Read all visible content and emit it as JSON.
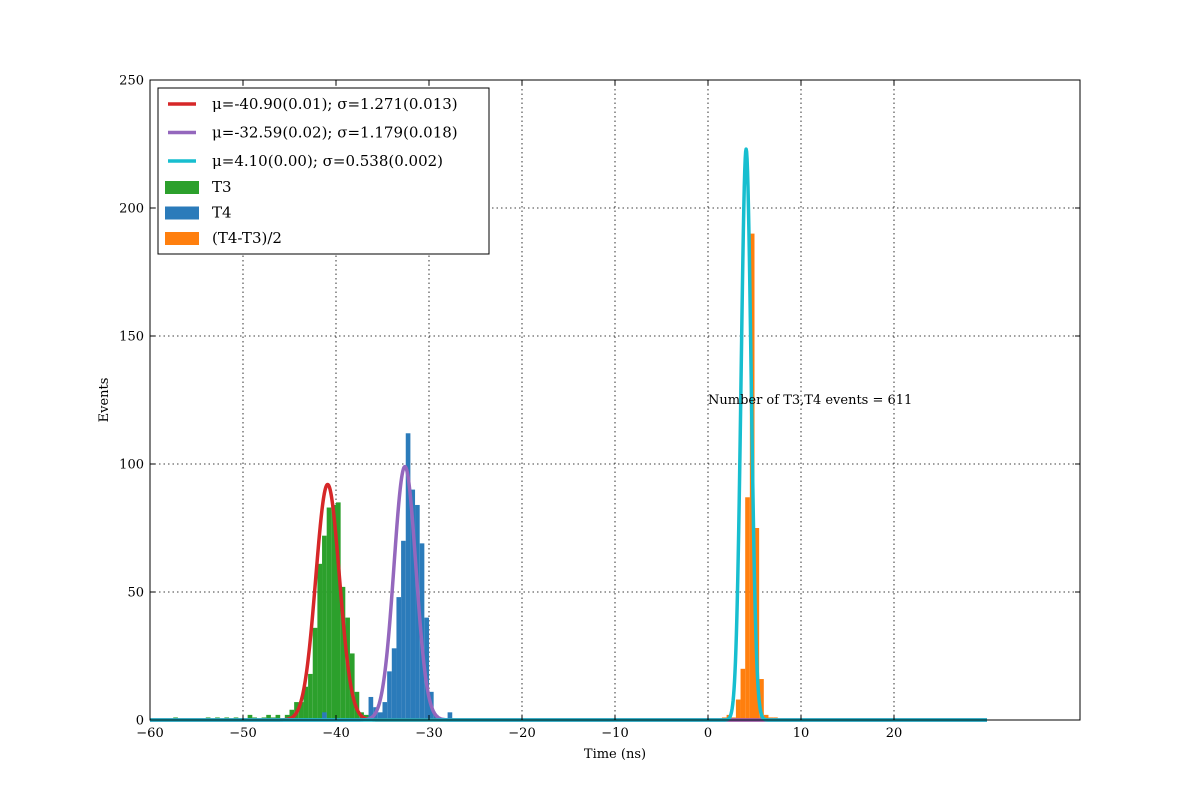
{
  "chart_data": {
    "type": "bar",
    "xlabel": "Time (ns)",
    "ylabel": "Events",
    "xlim": [
      -60,
      40
    ],
    "ylim": [
      0,
      250
    ],
    "x_ticks": [
      -60,
      -50,
      -40,
      -30,
      -20,
      -10,
      0,
      10,
      20
    ],
    "y_ticks": [
      0,
      50,
      100,
      150,
      200,
      250
    ],
    "x_tick_labels": [
      "−60",
      "−50",
      "−40",
      "−30",
      "−20",
      "−10",
      "0",
      "10",
      "20"
    ],
    "y_tick_labels": [
      "0",
      "50",
      "100",
      "150",
      "200",
      "250"
    ],
    "grid": true,
    "legend_position": "top-left",
    "annotation": {
      "text": "Number of T3,T4 events = 611",
      "x": 0,
      "y": 125
    },
    "histograms": [
      {
        "name": "T3",
        "color": "#2ca02c",
        "bins": [
          [
            -57.5,
            1
          ],
          [
            -54,
            1
          ],
          [
            -53,
            1
          ],
          [
            -52,
            1
          ],
          [
            -51,
            1
          ],
          [
            -49.5,
            2
          ],
          [
            -49,
            1
          ],
          [
            -48,
            1
          ],
          [
            -47,
            1
          ],
          [
            -47.5,
            2
          ],
          [
            -46.5,
            2
          ],
          [
            -45.5,
            2
          ],
          [
            -45,
            4
          ],
          [
            -44.5,
            7
          ],
          [
            -44,
            7
          ],
          [
            -43.5,
            13
          ],
          [
            -43,
            18
          ],
          [
            -42.5,
            36
          ],
          [
            -42,
            61
          ],
          [
            -41.5,
            72
          ],
          [
            -41,
            83
          ],
          [
            -40.5,
            84
          ],
          [
            -40,
            85
          ],
          [
            -39.5,
            52
          ],
          [
            -39,
            40
          ],
          [
            -38.5,
            26
          ],
          [
            -38,
            11
          ],
          [
            -37.5,
            3
          ],
          [
            -37,
            2
          ]
        ]
      },
      {
        "name": "T4",
        "color": "#2b7bba",
        "bins": [
          [
            -41.5,
            3
          ],
          [
            -36.5,
            9
          ],
          [
            -36,
            5
          ],
          [
            -35.5,
            3
          ],
          [
            -35,
            7
          ],
          [
            -34.5,
            19
          ],
          [
            -34,
            28
          ],
          [
            -33.5,
            48
          ],
          [
            -33,
            70
          ],
          [
            -32.5,
            112
          ],
          [
            -32,
            90
          ],
          [
            -31.5,
            84
          ],
          [
            -31,
            69
          ],
          [
            -30.5,
            40
          ],
          [
            -30,
            11
          ],
          [
            -29.5,
            2
          ],
          [
            -28,
            3
          ]
        ]
      },
      {
        "name": "(T4-T3)/2",
        "color": "#ff7f0e",
        "bins": [
          [
            1.5,
            1
          ],
          [
            2,
            2
          ],
          [
            2.5,
            1
          ],
          [
            3,
            8
          ],
          [
            3.5,
            20
          ],
          [
            4,
            87
          ],
          [
            4.5,
            190
          ],
          [
            5,
            75
          ],
          [
            5.5,
            16
          ],
          [
            6,
            2
          ],
          [
            6.5,
            1
          ],
          [
            7,
            1
          ]
        ]
      }
    ],
    "series": [
      {
        "name": "μ=-40.90(0.01); σ=1.271(0.013)",
        "color": "#d62728",
        "mu": -40.9,
        "sigma": 1.271,
        "amplitude": 92
      },
      {
        "name": "μ=-32.59(0.02); σ=1.179(0.018)",
        "color": "#9467bd",
        "mu": -32.59,
        "sigma": 1.179,
        "amplitude": 99
      },
      {
        "name": "μ=4.10(0.00); σ=0.538(0.002)",
        "color": "#17becf",
        "mu": 4.1,
        "sigma": 0.538,
        "amplitude": 223
      }
    ],
    "fit_x_range": [
      -60,
      30
    ]
  }
}
